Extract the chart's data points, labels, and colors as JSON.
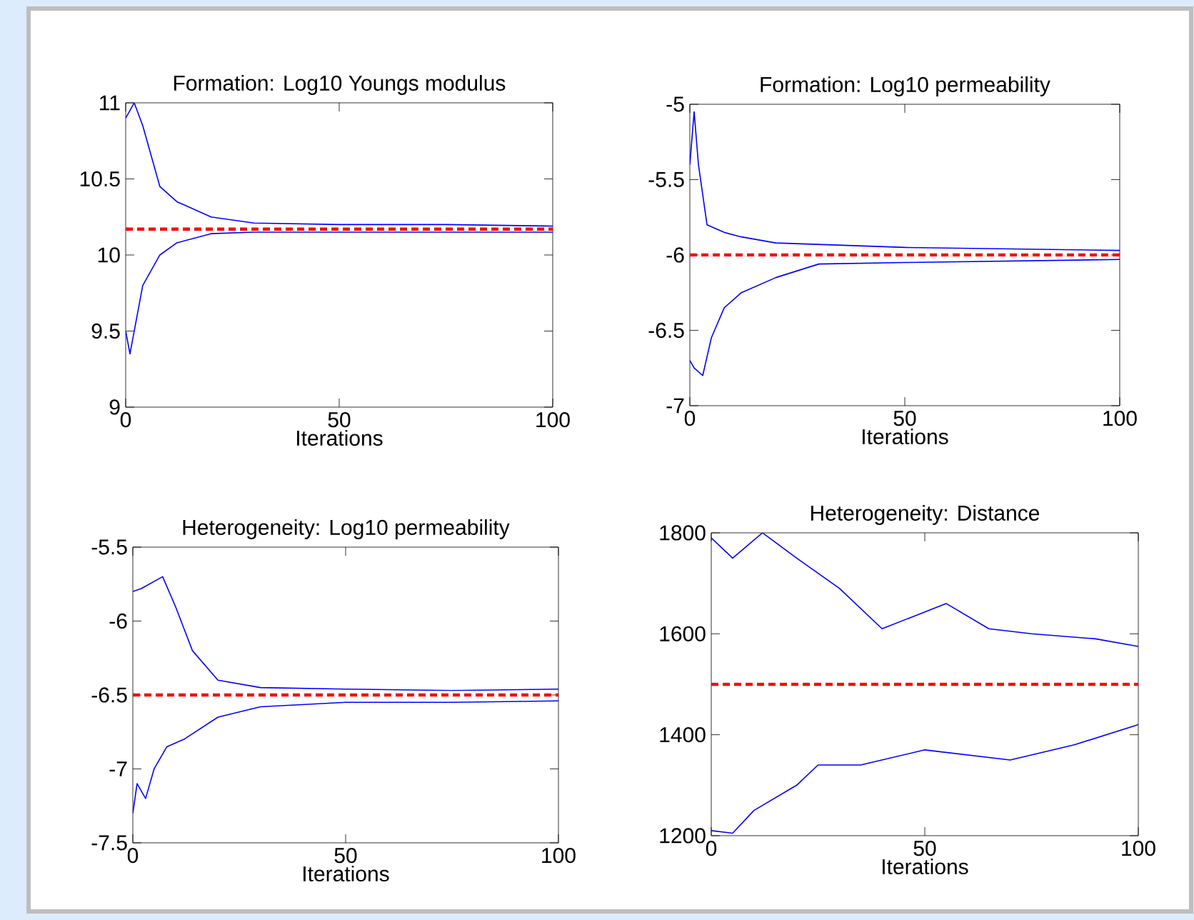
{
  "chart_data": [
    {
      "type": "line",
      "title": "Formation: Log10 Youngs modulus",
      "xlabel": "Iterations",
      "xlim": [
        0,
        100
      ],
      "ylim": [
        9,
        11
      ],
      "xticks": [
        0,
        50,
        100
      ],
      "yticks": [
        9,
        9.5,
        10,
        10.5,
        11
      ],
      "series": [
        {
          "color": "#0000ff",
          "x": [
            0,
            2,
            4,
            8,
            12,
            20,
            30,
            50,
            75,
            100
          ],
          "values": [
            10.9,
            11.0,
            10.85,
            10.45,
            10.35,
            10.25,
            10.21,
            10.2,
            10.2,
            10.19
          ]
        },
        {
          "color": "#0000ff",
          "x": [
            0,
            1,
            2,
            4,
            8,
            12,
            20,
            30,
            50,
            75,
            100
          ],
          "values": [
            9.5,
            9.35,
            9.5,
            9.8,
            10.0,
            10.08,
            10.14,
            10.15,
            10.15,
            10.15,
            10.15
          ]
        }
      ],
      "ref_lines": [
        {
          "axis": "y",
          "value": 10.17,
          "color": "#ff0000",
          "line_style": "dashed"
        }
      ]
    },
    {
      "type": "line",
      "title": "Formation: Log10 permeability",
      "xlabel": "Iterations",
      "xlim": [
        0,
        100
      ],
      "ylim": [
        -7,
        -5
      ],
      "xticks": [
        0,
        50,
        100
      ],
      "yticks": [
        -7,
        -6.5,
        -6,
        -5.5,
        -5
      ],
      "series": [
        {
          "color": "#0000ff",
          "x": [
            0,
            1,
            2,
            4,
            8,
            12,
            20,
            30,
            50,
            75,
            100
          ],
          "values": [
            -5.4,
            -5.05,
            -5.4,
            -5.8,
            -5.85,
            -5.88,
            -5.92,
            -5.93,
            -5.95,
            -5.96,
            -5.97
          ]
        },
        {
          "color": "#0000ff",
          "x": [
            0,
            1,
            3,
            5,
            8,
            12,
            20,
            30,
            50,
            75,
            100
          ],
          "values": [
            -6.7,
            -6.75,
            -6.8,
            -6.55,
            -6.35,
            -6.25,
            -6.15,
            -6.06,
            -6.05,
            -6.04,
            -6.03
          ]
        }
      ],
      "ref_lines": [
        {
          "axis": "y",
          "value": -6,
          "color": "#ff0000",
          "line_style": "dashed"
        }
      ]
    },
    {
      "type": "line",
      "title": "Heterogeneity: Log10 permeability",
      "xlabel": "Iterations",
      "xlim": [
        0,
        100
      ],
      "ylim": [
        -7.5,
        -5.5
      ],
      "xticks": [
        0,
        50,
        100
      ],
      "yticks": [
        -7.5,
        -7,
        -6.5,
        -6,
        -5.5
      ],
      "series": [
        {
          "color": "#0000ff",
          "x": [
            0,
            2,
            7,
            10,
            14,
            20,
            30,
            50,
            75,
            100
          ],
          "values": [
            -5.8,
            -5.78,
            -5.7,
            -5.9,
            -6.2,
            -6.4,
            -6.45,
            -6.46,
            -6.47,
            -6.46
          ]
        },
        {
          "color": "#0000ff",
          "x": [
            0,
            1,
            3,
            5,
            8,
            12,
            20,
            30,
            50,
            75,
            100
          ],
          "values": [
            -7.3,
            -7.1,
            -7.2,
            -7.0,
            -6.85,
            -6.8,
            -6.65,
            -6.58,
            -6.55,
            -6.55,
            -6.54
          ]
        }
      ],
      "ref_lines": [
        {
          "axis": "y",
          "value": -6.5,
          "color": "#ff0000",
          "line_style": "dashed"
        }
      ]
    },
    {
      "type": "line",
      "title": "Heterogeneity: Distance",
      "xlabel": "Iterations",
      "xlim": [
        0,
        100
      ],
      "ylim": [
        1200,
        1800
      ],
      "xticks": [
        0,
        50,
        100
      ],
      "yticks": [
        1200,
        1400,
        1600,
        1800
      ],
      "series": [
        {
          "color": "#0000ff",
          "x": [
            0,
            5,
            12,
            20,
            30,
            40,
            55,
            65,
            75,
            90,
            100
          ],
          "values": [
            1790,
            1750,
            1800,
            1750,
            1690,
            1610,
            1660,
            1610,
            1600,
            1590,
            1575
          ]
        },
        {
          "color": "#0000ff",
          "x": [
            0,
            5,
            10,
            20,
            25,
            35,
            50,
            70,
            85,
            100
          ],
          "values": [
            1210,
            1205,
            1250,
            1300,
            1340,
            1340,
            1370,
            1350,
            1380,
            1420
          ]
        }
      ],
      "ref_lines": [
        {
          "axis": "y",
          "value": 1500,
          "color": "#ff0000",
          "line_style": "dashed"
        }
      ]
    }
  ]
}
